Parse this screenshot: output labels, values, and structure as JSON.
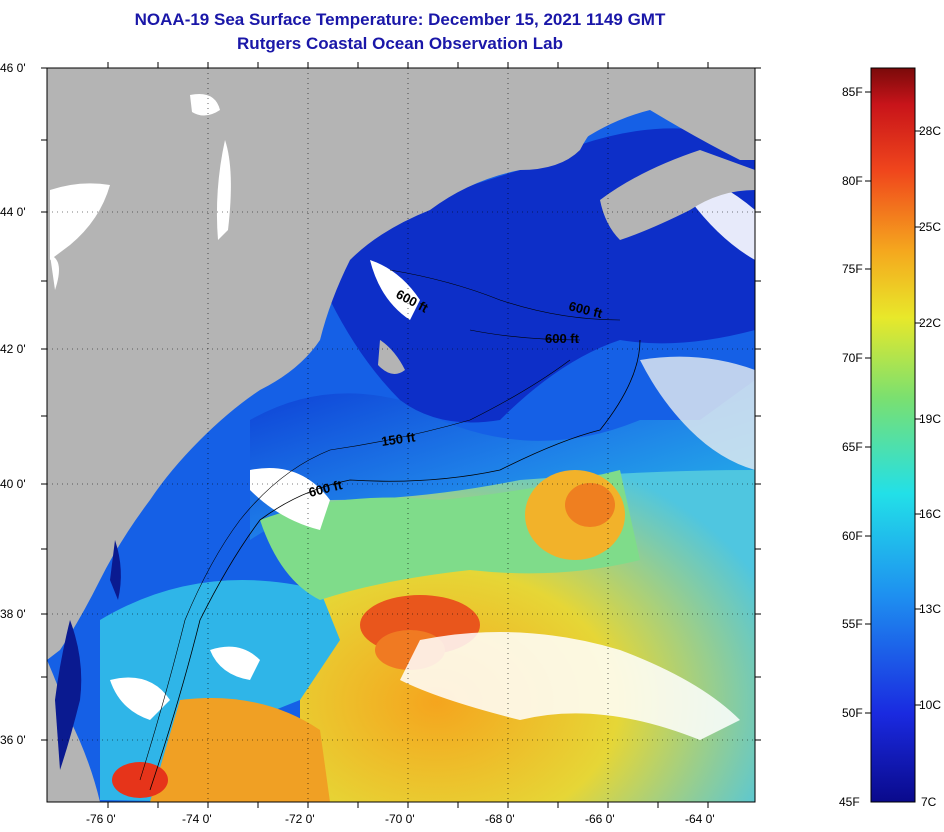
{
  "header": {
    "title": "NOAA-19 Sea Surface Temperature:  December 15, 2021 1149 GMT",
    "subtitle": "Rutgers Coastal Ocean Observation Lab"
  },
  "map": {
    "lat_labels": [
      "46 0'",
      "44 0'",
      "42 0'",
      "40 0'",
      "38 0'",
      "36 0'"
    ],
    "lon_labels": [
      "-76 0'",
      "-74 0'",
      "-72 0'",
      "-70 0'",
      "-68 0'",
      "-66 0'",
      "-64 0'"
    ],
    "contours": [
      {
        "label": "600 ft"
      },
      {
        "label": "600 ft"
      },
      {
        "label": "600 ft"
      },
      {
        "label": "150 ft"
      },
      {
        "label": "600 ft"
      }
    ],
    "colors": {
      "land": "#b4b4b4",
      "cloud": "#ffffff",
      "cold": "#0a1aa8",
      "warm": "#e8401a"
    }
  },
  "colorbar": {
    "fahrenheit": [
      "85F",
      "80F",
      "75F",
      "70F",
      "65F",
      "60F",
      "55F",
      "50F",
      "45F"
    ],
    "celsius": [
      "28C",
      "25C",
      "22C",
      "19C",
      "16C",
      "13C",
      "10C",
      "7C"
    ]
  }
}
